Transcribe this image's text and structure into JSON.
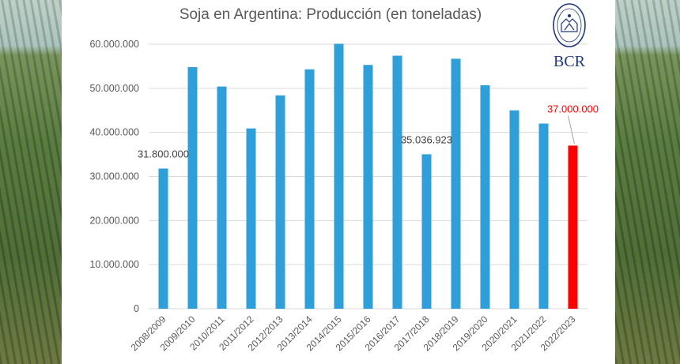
{
  "chart_data": {
    "type": "bar",
    "title": "Soja en Argentina: Producción (en toneladas)",
    "categories": [
      "2008/2009",
      "2009/2010",
      "2010/2011",
      "2011/2012",
      "2012/2013",
      "2013/2014",
      "2014/2015",
      "2015/2016",
      "2016/2017",
      "2017/2018",
      "2018/2019",
      "2019/2020",
      "2020/2021",
      "2021/2022",
      "2022/2023"
    ],
    "values": [
      31800000,
      54800000,
      50400000,
      40900000,
      48400000,
      54300000,
      60100000,
      55300000,
      57400000,
      35036923,
      56700000,
      50700000,
      45000000,
      42000000,
      37000000
    ],
    "series_color": "#2e9fd9",
    "highlight_index": 14,
    "highlight_color": "#ff0000",
    "ylim": [
      0,
      60000000
    ],
    "yticks": [
      "0",
      "10.000.000",
      "20.000.000",
      "30.000.000",
      "40.000.000",
      "50.000.000",
      "60.000.000"
    ],
    "data_labels": [
      {
        "index": 0,
        "text": "31.800.000"
      },
      {
        "index": 9,
        "text": "35.036.923"
      },
      {
        "index": 14,
        "text": "37.000.000"
      }
    ],
    "xlabel": "",
    "ylabel": "",
    "grid": true,
    "legend": "none"
  },
  "logo": {
    "text": "BCR",
    "icon": "bcr-emblem-icon"
  }
}
